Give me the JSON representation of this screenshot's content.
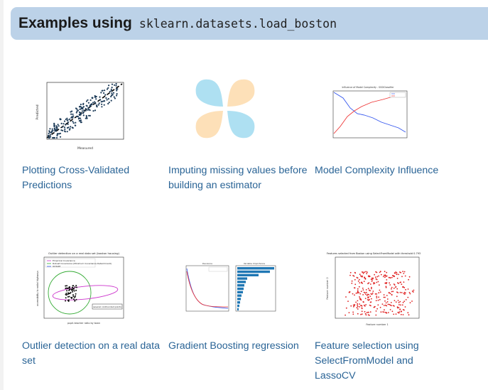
{
  "header": {
    "title": "Examples using",
    "code": "sklearn.datasets.load_boston"
  },
  "examples": [
    {
      "caption": "Plotting Cross-Validated Predictions",
      "icon": "scatter-plot-thumbnail"
    },
    {
      "caption": "Imputing missing values before building an estimator",
      "icon": "imputing-logo-thumbnail"
    },
    {
      "caption": "Model Complexity Influence",
      "icon": "line-plot-thumbnail"
    },
    {
      "caption": "Outlier detection on a real data set",
      "icon": "outlier-plot-thumbnail"
    },
    {
      "caption": "Gradient Boosting regression",
      "icon": "gbr-plot-thumbnail"
    },
    {
      "caption": "Feature selection using SelectFromModel and LassoCV",
      "icon": "feature-selection-thumbnail"
    }
  ],
  "thumb_texts": {
    "outlier_title": "Outlier detection on a real data set (boston housing)",
    "outlier_legend": [
      "Empirical Covariance",
      "Robust Covariance (Minimum Covariance Determinant)",
      "OCSVM"
    ],
    "outlier_annotation": "several confounded points",
    "outlier_xlabel": "pupil-teacher ratio by town",
    "outlier_ylabel": "accessibility to radial highways",
    "feature_title": "Features selected from Boston using SelectFromModel with threshold 0.793",
    "feature_xlabel": "Feature number 1",
    "feature_ylabel": "Feature number 2",
    "cv_xlabel": "Measured",
    "cv_ylabel": "Predicted",
    "gbr_left_title": "Deviance",
    "gbr_right_title": "Variable Importance",
    "mci_title": "Influence of Model Complexity - SGDClassifier"
  },
  "colors": {
    "header_bg": "#bcd2e8",
    "link": "#2a6496",
    "imputing_blue": "#aee0f2",
    "imputing_orange": "#fde0b8"
  }
}
